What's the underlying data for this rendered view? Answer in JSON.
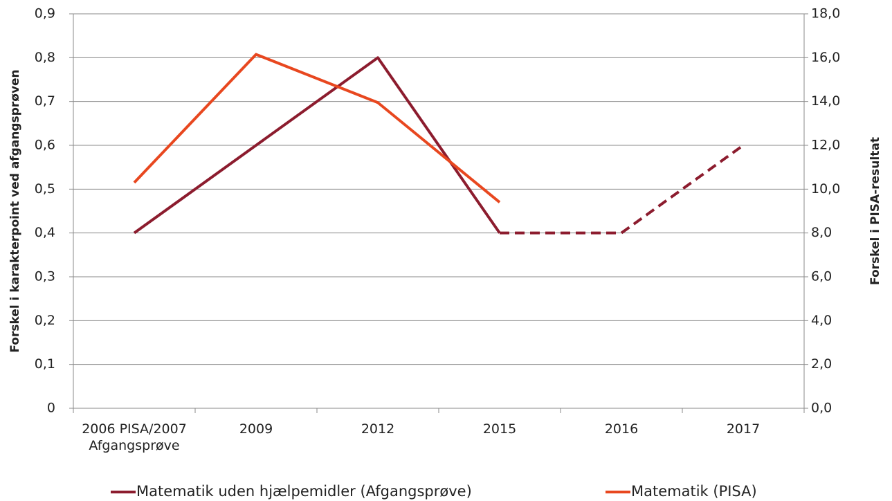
{
  "chart_data": {
    "type": "line",
    "categories": [
      "2006 PISA/2007 Afgangsprøve",
      "2009",
      "2012",
      "2015",
      "2016",
      "2017"
    ],
    "series": [
      {
        "name": "Matematik uden hjælpemidler (Afgangsprøve)",
        "color": "#8c1c2e",
        "values": [
          0.4,
          0.6,
          0.8,
          0.4,
          0.4,
          0.6
        ],
        "dashed_from": "2015"
      },
      {
        "name": "Matematik (PISA)",
        "color": "#e8471f",
        "values": [
          10.3,
          16.15,
          13.95,
          9.4,
          null,
          null
        ],
        "axis": "y2"
      }
    ],
    "ylabel": "Forskel i karakterpoint ved afgangsprøven",
    "y2label": "Forskel i PISA-resultat",
    "ylim": [
      0,
      0.9
    ],
    "yticks": [
      0,
      {
        "value": 0.1,
        "label": "0,1"
      },
      {
        "value": 0.2,
        "label": "0,2"
      },
      {
        "value": 0.3,
        "label": "0,3"
      },
      {
        "value": 0.4,
        "label": "0,4"
      },
      {
        "value": 0.5,
        "label": "0,5"
      },
      {
        "value": 0.6,
        "label": "0,6"
      },
      {
        "value": 0.7,
        "label": "0,7"
      },
      {
        "value": 0.8,
        "label": "0,8"
      },
      {
        "value": 0.9,
        "label": "0,9"
      }
    ],
    "y2lim": [
      0,
      18
    ],
    "y2ticks": [
      {
        "value": 0,
        "label": "0,0"
      },
      {
        "value": 2,
        "label": "2,0"
      },
      {
        "value": 4,
        "label": "4,0"
      },
      {
        "value": 6,
        "label": "6,0"
      },
      {
        "value": 8,
        "label": "8,0"
      },
      {
        "value": 10,
        "label": "10,0"
      },
      {
        "value": 12,
        "label": "12,0"
      },
      {
        "value": 14,
        "label": "14,0"
      },
      {
        "value": 16,
        "label": "16,0"
      },
      {
        "value": 18,
        "label": "18,0"
      }
    ],
    "grid": true,
    "legend": "bottom"
  }
}
